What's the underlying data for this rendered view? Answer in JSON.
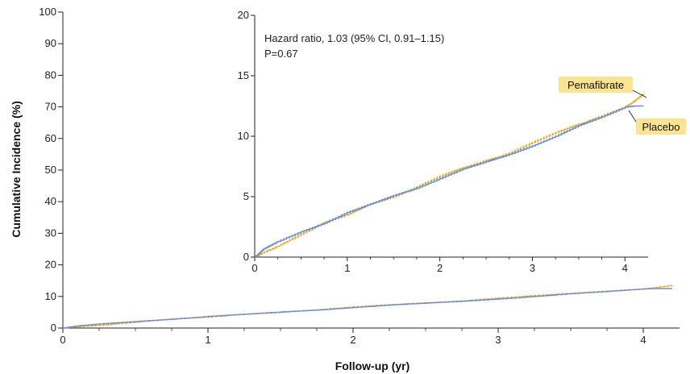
{
  "colors": {
    "pemafibrate": "#e8a21e",
    "placebo": "#6b8fc9",
    "label_bg": "#fbe38f",
    "axis": "#222222"
  },
  "chart_data": [
    {
      "type": "line",
      "role": "main",
      "xlabel": "Follow-up (yr)",
      "ylabel": "Cumulative Incidence (%)",
      "xlim": [
        0,
        4.25
      ],
      "ylim": [
        0,
        100
      ],
      "x_ticks": [
        0,
        1,
        2,
        3,
        4
      ],
      "y_ticks": [
        0,
        10,
        20,
        30,
        40,
        50,
        60,
        70,
        80,
        90,
        100
      ],
      "grid": false,
      "series": [
        {
          "name": "Pemafibrate",
          "color": "#e8a21e",
          "x": [
            0,
            0.1,
            0.25,
            0.5,
            0.75,
            1.0,
            1.25,
            1.5,
            1.75,
            2.0,
            2.25,
            2.5,
            2.75,
            3.0,
            3.25,
            3.5,
            3.75,
            4.0,
            4.1,
            4.2
          ],
          "y": [
            0,
            0.4,
            0.9,
            1.9,
            2.9,
            3.5,
            4.4,
            5.0,
            5.8,
            6.7,
            7.4,
            8.0,
            8.6,
            9.5,
            10.3,
            11.0,
            11.7,
            12.4,
            12.9,
            13.5
          ]
        },
        {
          "name": "Placebo",
          "color": "#6b8fc9",
          "x": [
            0,
            0.1,
            0.25,
            0.5,
            0.75,
            1.0,
            1.25,
            1.5,
            1.75,
            2.0,
            2.25,
            2.5,
            2.75,
            3.0,
            3.25,
            3.5,
            3.75,
            4.0,
            4.1,
            4.2
          ],
          "y": [
            0,
            0.7,
            1.3,
            2.1,
            2.8,
            3.7,
            4.4,
            5.1,
            5.7,
            6.5,
            7.3,
            7.9,
            8.5,
            9.2,
            10.0,
            10.9,
            11.6,
            12.4,
            12.5,
            12.5
          ]
        }
      ]
    },
    {
      "type": "line",
      "role": "inset",
      "xlim": [
        0,
        4.25
      ],
      "ylim": [
        0,
        20
      ],
      "x_ticks": [
        0,
        1,
        2,
        3,
        4
      ],
      "y_ticks": [
        0,
        5,
        10,
        15,
        20
      ],
      "grid": false,
      "annotation_lines": [
        "Hazard ratio, 1.03 (95% CI, 0.91–1.15)",
        "P=0.67"
      ],
      "labels": [
        "Pemafibrate",
        "Placebo"
      ],
      "series": [
        {
          "name": "Pemafibrate",
          "color": "#e8a21e",
          "x": [
            0,
            0.1,
            0.25,
            0.5,
            0.75,
            1.0,
            1.25,
            1.5,
            1.75,
            2.0,
            2.25,
            2.5,
            2.75,
            3.0,
            3.25,
            3.5,
            3.75,
            4.0,
            4.1,
            4.2
          ],
          "y": [
            0,
            0.4,
            0.9,
            1.9,
            2.9,
            3.5,
            4.4,
            5.0,
            5.8,
            6.7,
            7.4,
            8.0,
            8.6,
            9.5,
            10.3,
            11.0,
            11.7,
            12.4,
            12.9,
            13.5
          ]
        },
        {
          "name": "Placebo",
          "color": "#6b8fc9",
          "x": [
            0,
            0.1,
            0.25,
            0.5,
            0.75,
            1.0,
            1.25,
            1.5,
            1.75,
            2.0,
            2.25,
            2.5,
            2.75,
            3.0,
            3.25,
            3.5,
            3.75,
            4.0,
            4.1,
            4.2
          ],
          "y": [
            0,
            0.7,
            1.3,
            2.1,
            2.8,
            3.7,
            4.4,
            5.1,
            5.7,
            6.5,
            7.3,
            7.9,
            8.5,
            9.2,
            10.0,
            10.9,
            11.6,
            12.4,
            12.5,
            12.5
          ]
        }
      ]
    }
  ]
}
